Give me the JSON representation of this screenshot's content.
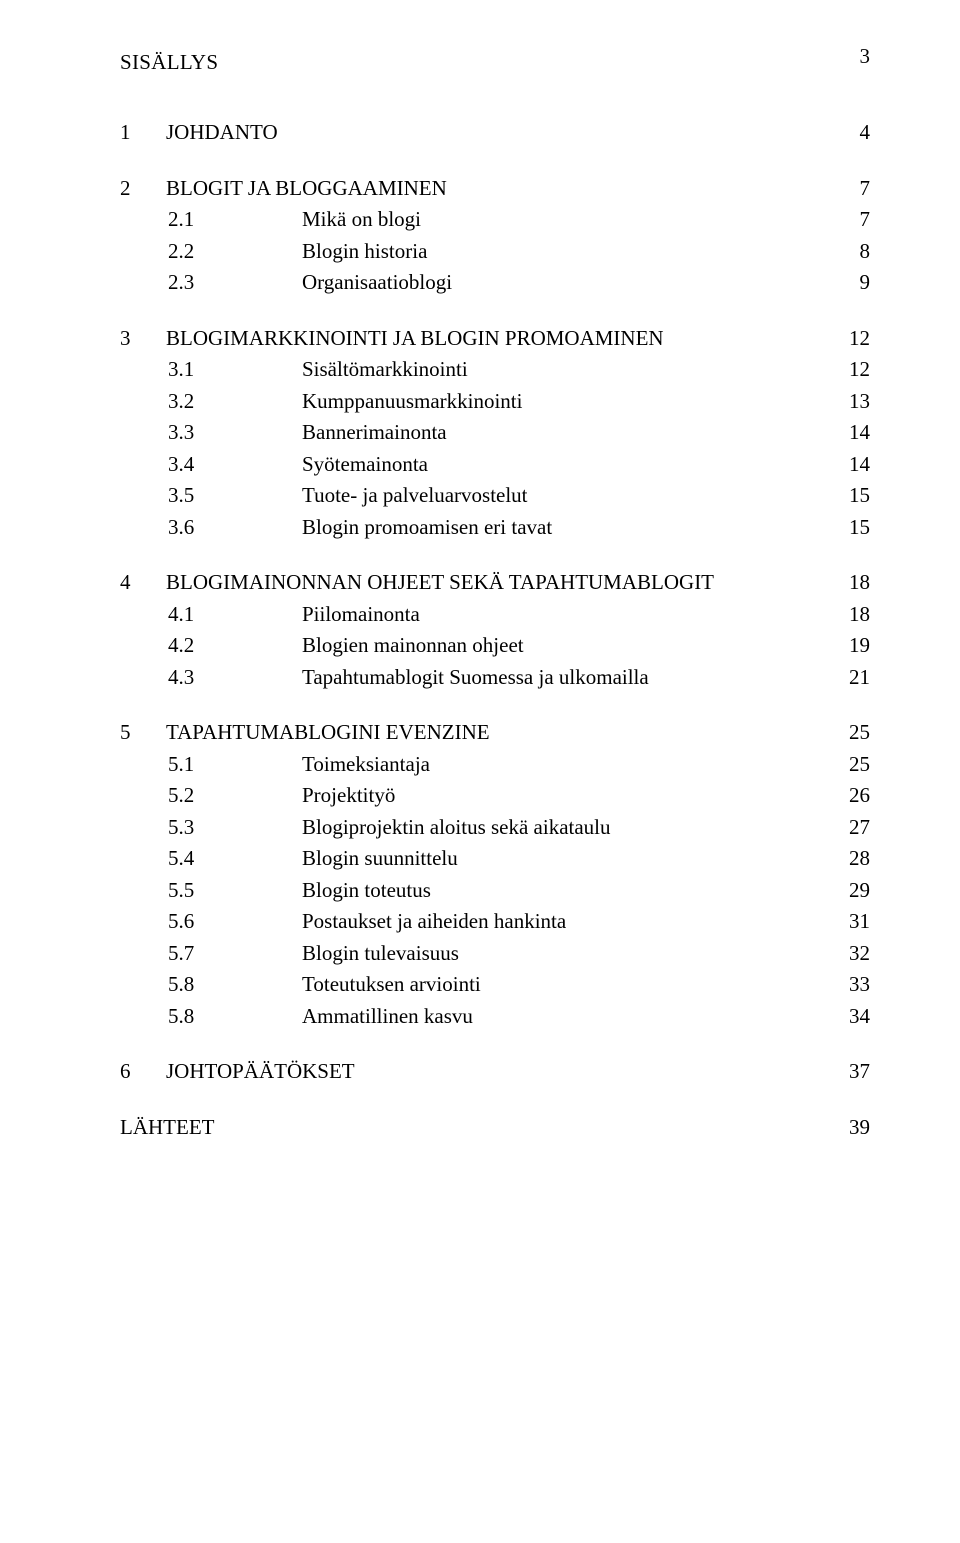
{
  "page_number": "3",
  "title": "SISÄLLYS",
  "toc": [
    {
      "level": 1,
      "num": "1",
      "label": "JOHDANTO",
      "page": "4"
    },
    {
      "level": 1,
      "num": "2",
      "label": "BLOGIT JA BLOGGAAMINEN",
      "page": "7"
    },
    {
      "level": 2,
      "num": "2.1",
      "label": "Mikä on blogi",
      "page": "7"
    },
    {
      "level": 2,
      "num": "2.2",
      "label": "Blogin historia",
      "page": "8"
    },
    {
      "level": 2,
      "num": "2.3",
      "label": "Organisaatioblogi",
      "page": "9"
    },
    {
      "level": 1,
      "num": "3",
      "label": "BLOGIMARKKINOINTI JA BLOGIN PROMOAMINEN",
      "page": "12"
    },
    {
      "level": 2,
      "num": "3.1",
      "label": "Sisältömarkkinointi",
      "page": "12"
    },
    {
      "level": 2,
      "num": "3.2",
      "label": "Kumppanuusmarkkinointi",
      "page": "13"
    },
    {
      "level": 2,
      "num": "3.3",
      "label": "Bannerimainonta",
      "page": "14"
    },
    {
      "level": 2,
      "num": "3.4",
      "label": "Syötemainonta",
      "page": "14"
    },
    {
      "level": 2,
      "num": "3.5",
      "label": "Tuote- ja palveluarvostelut",
      "page": "15"
    },
    {
      "level": 2,
      "num": "3.6",
      "label": "Blogin promoamisen eri tavat",
      "page": "15"
    },
    {
      "level": 1,
      "num": "4",
      "label": "BLOGIMAINONNAN OHJEET SEKÄ TAPAHTUMABLOGIT",
      "page": "18"
    },
    {
      "level": 2,
      "num": "4.1",
      "label": "Piilomainonta",
      "page": "18"
    },
    {
      "level": 2,
      "num": "4.2",
      "label": "Blogien mainonnan ohjeet",
      "page": "19"
    },
    {
      "level": 2,
      "num": "4.3",
      "label": "Tapahtumablogit Suomessa ja ulkomailla",
      "page": "21"
    },
    {
      "level": 1,
      "num": "5",
      "label": "TAPAHTUMABLOGINI EVENZINE",
      "page": "25"
    },
    {
      "level": 2,
      "num": "5.1",
      "label": "Toimeksiantaja",
      "page": "25"
    },
    {
      "level": 2,
      "num": "5.2",
      "label": "Projektityö",
      "page": "26"
    },
    {
      "level": 2,
      "num": "5.3",
      "label": "Blogiprojektin aloitus sekä aikataulu",
      "page": "27"
    },
    {
      "level": 2,
      "num": "5.4",
      "label": "Blogin suunnittelu",
      "page": "28"
    },
    {
      "level": 2,
      "num": "5.5",
      "label": "Blogin toteutus",
      "page": "29"
    },
    {
      "level": 2,
      "num": "5.6",
      "label": "Postaukset ja aiheiden hankinta",
      "page": "31"
    },
    {
      "level": 2,
      "num": "5.7",
      "label": "Blogin tulevaisuus",
      "page": "32"
    },
    {
      "level": 2,
      "num": "5.8",
      "label": "Toteutuksen arviointi",
      "page": "33"
    },
    {
      "level": 2,
      "num": "5.8",
      "label": "Ammatillinen kasvu",
      "page": "34"
    },
    {
      "level": 1,
      "num": "6",
      "label": "JOHTOPÄÄTÖKSET",
      "page": "37"
    },
    {
      "level": 1,
      "num": "",
      "label": "LÄHTEET",
      "page": "39",
      "last": true
    }
  ],
  "style": {
    "font_family": "Times New Roman",
    "font_size_pt": 16,
    "text_color": "#000000",
    "background_color": "#ffffff"
  }
}
